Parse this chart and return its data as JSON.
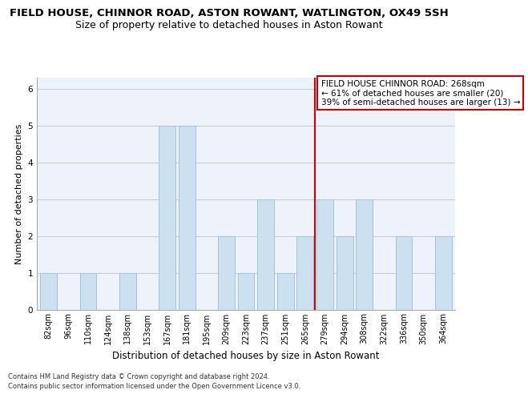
{
  "title1": "FIELD HOUSE, CHINNOR ROAD, ASTON ROWANT, WATLINGTON, OX49 5SH",
  "title2": "Size of property relative to detached houses in Aston Rowant",
  "xlabel": "Distribution of detached houses by size in Aston Rowant",
  "ylabel": "Number of detached properties",
  "categories": [
    "82sqm",
    "96sqm",
    "110sqm",
    "124sqm",
    "138sqm",
    "153sqm",
    "167sqm",
    "181sqm",
    "195sqm",
    "209sqm",
    "223sqm",
    "237sqm",
    "251sqm",
    "265sqm",
    "279sqm",
    "294sqm",
    "308sqm",
    "322sqm",
    "336sqm",
    "350sqm",
    "364sqm"
  ],
  "values": [
    1,
    0,
    1,
    0,
    1,
    0,
    5,
    5,
    0,
    2,
    1,
    3,
    1,
    2,
    3,
    2,
    3,
    0,
    2,
    0,
    2
  ],
  "bar_color": "#cce0f0",
  "bar_edge_color": "#a0c4e0",
  "ref_line_index": 13.5,
  "ref_line_color": "#cc0000",
  "annotation_line1": "FIELD HOUSE CHINNOR ROAD: 268sqm",
  "annotation_line2": "← 61% of detached houses are smaller (20)",
  "annotation_line3": "39% of semi-detached houses are larger (13) →",
  "annotation_box_color": "#ffffff",
  "annotation_box_edge": "#cc0000",
  "ylim": [
    0,
    6.3
  ],
  "yticks": [
    0,
    1,
    2,
    3,
    4,
    5,
    6
  ],
  "grid_color": "#cccccc",
  "bg_color": "#eef3fb",
  "footer1": "Contains HM Land Registry data © Crown copyright and database right 2024.",
  "footer2": "Contains public sector information licensed under the Open Government Licence v3.0.",
  "title1_fontsize": 9.5,
  "title2_fontsize": 9,
  "xlabel_fontsize": 8.5,
  "ylabel_fontsize": 8,
  "tick_fontsize": 7,
  "annotation_fontsize": 7.5,
  "footer_fontsize": 6
}
